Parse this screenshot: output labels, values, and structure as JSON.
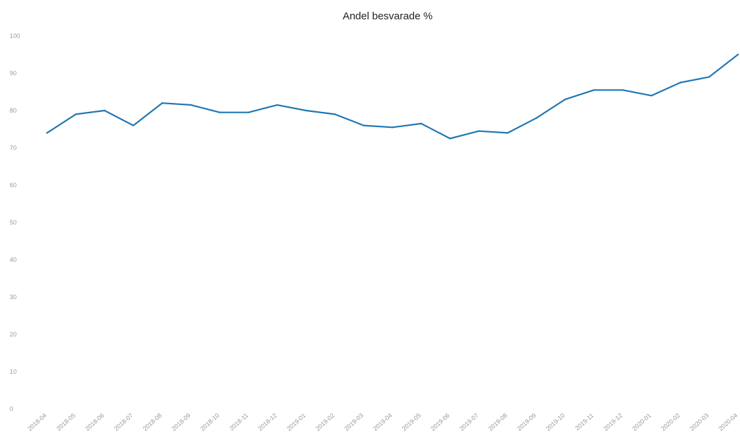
{
  "chart_data": {
    "type": "line",
    "title": "Andel besvarade %",
    "xlabel": "",
    "ylabel": "",
    "ylim": [
      0,
      100
    ],
    "y_ticks": [
      "0",
      "10",
      "20",
      "30",
      "40",
      "50",
      "60",
      "70",
      "80",
      "90",
      "100"
    ],
    "y_tick_values": [
      0,
      10,
      20,
      30,
      40,
      50,
      60,
      70,
      80,
      90,
      100
    ],
    "categories": [
      "2018-04",
      "2018-05",
      "2018-06",
      "2018-07",
      "2018-08",
      "2018-09",
      "2018-10",
      "2018-11",
      "2018-12",
      "2019-01",
      "2019-02",
      "2019-03",
      "2019-04",
      "2019-05",
      "2019-06",
      "2019-07",
      "2019-08",
      "2019-09",
      "2019-10",
      "2019-11",
      "2019-12",
      "2020-01",
      "2020-02",
      "2020-03",
      "2020-04"
    ],
    "series": [
      {
        "values": [
          74,
          79,
          80,
          76,
          82,
          81.5,
          79.5,
          79.5,
          81.5,
          80,
          79,
          76,
          75.5,
          76.5,
          72.5,
          74.5,
          74,
          78,
          83,
          85.5,
          85.5,
          84,
          87.5,
          89,
          95
        ],
        "color": "#1f77b4"
      }
    ],
    "grid": false,
    "legend": "none"
  }
}
